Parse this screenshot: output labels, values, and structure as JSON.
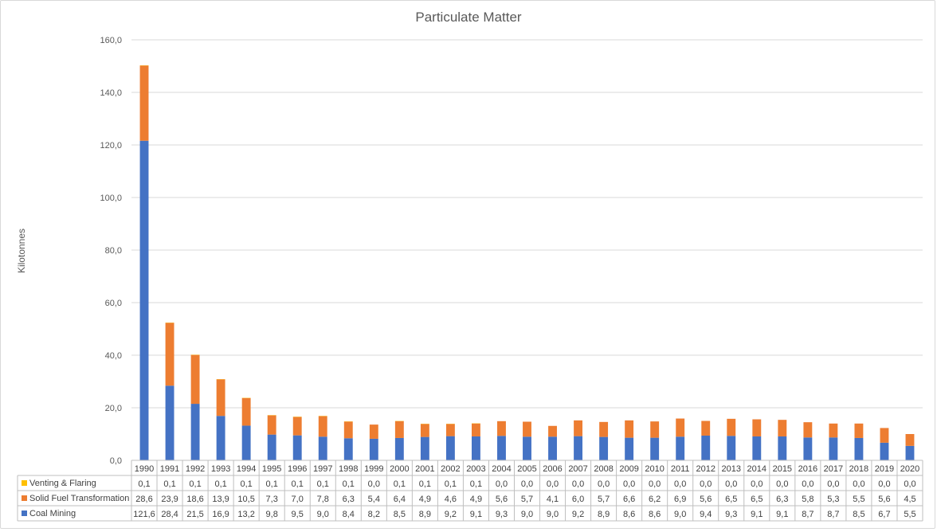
{
  "chart_data": {
    "type": "bar",
    "stacked": true,
    "title": "Particulate Matter",
    "ylabel": "Kilotonnes",
    "xlabel": "",
    "ylim": [
      0,
      160
    ],
    "yticks": [
      "0,0",
      "20,0",
      "40,0",
      "60,0",
      "80,0",
      "100,0",
      "120,0",
      "140,0",
      "160,0"
    ],
    "grid": true,
    "legend": "data-table-left",
    "categories": [
      "1990",
      "1991",
      "1992",
      "1993",
      "1994",
      "1995",
      "1996",
      "1997",
      "1998",
      "1999",
      "2000",
      "2001",
      "2002",
      "2003",
      "2004",
      "2005",
      "2006",
      "2007",
      "2008",
      "2009",
      "2010",
      "2011",
      "2012",
      "2013",
      "2014",
      "2015",
      "2016",
      "2017",
      "2018",
      "2019",
      "2020"
    ],
    "series": [
      {
        "name": "Venting & Flaring",
        "color": "#ffc000",
        "values": [
          0.1,
          0.1,
          0.1,
          0.1,
          0.1,
          0.1,
          0.1,
          0.1,
          0.1,
          0.0,
          0.1,
          0.1,
          0.1,
          0.1,
          0.0,
          0.0,
          0.0,
          0.0,
          0.0,
          0.0,
          0.0,
          0.0,
          0.0,
          0.0,
          0.0,
          0.0,
          0.0,
          0.0,
          0.0,
          0.0,
          0.0
        ],
        "labels": [
          "0,1",
          "0,1",
          "0,1",
          "0,1",
          "0,1",
          "0,1",
          "0,1",
          "0,1",
          "0,1",
          "0,0",
          "0,1",
          "0,1",
          "0,1",
          "0,1",
          "0,0",
          "0,0",
          "0,0",
          "0,0",
          "0,0",
          "0,0",
          "0,0",
          "0,0",
          "0,0",
          "0,0",
          "0,0",
          "0,0",
          "0,0",
          "0,0",
          "0,0",
          "0,0",
          "0,0"
        ]
      },
      {
        "name": "Solid Fuel Transformation",
        "color": "#ed7d31",
        "values": [
          28.6,
          23.9,
          18.6,
          13.9,
          10.5,
          7.3,
          7.0,
          7.8,
          6.3,
          5.4,
          6.4,
          4.9,
          4.6,
          4.9,
          5.6,
          5.7,
          4.1,
          6.0,
          5.7,
          6.6,
          6.2,
          6.9,
          5.6,
          6.5,
          6.5,
          6.3,
          5.8,
          5.3,
          5.5,
          5.6,
          4.5
        ],
        "labels": [
          "28,6",
          "23,9",
          "18,6",
          "13,9",
          "10,5",
          "7,3",
          "7,0",
          "7,8",
          "6,3",
          "5,4",
          "6,4",
          "4,9",
          "4,6",
          "4,9",
          "5,6",
          "5,7",
          "4,1",
          "6,0",
          "5,7",
          "6,6",
          "6,2",
          "6,9",
          "5,6",
          "6,5",
          "6,5",
          "6,3",
          "5,8",
          "5,3",
          "5,5",
          "5,6",
          "4,5"
        ]
      },
      {
        "name": "Coal Mining",
        "color": "#4472c4",
        "values": [
          121.6,
          28.4,
          21.5,
          16.9,
          13.2,
          9.8,
          9.5,
          9.0,
          8.4,
          8.2,
          8.5,
          8.9,
          9.2,
          9.1,
          9.3,
          9.0,
          9.0,
          9.2,
          8.9,
          8.6,
          8.6,
          9.0,
          9.4,
          9.3,
          9.1,
          9.1,
          8.7,
          8.7,
          8.5,
          6.7,
          5.5
        ],
        "labels": [
          "121,6",
          "28,4",
          "21,5",
          "16,9",
          "13,2",
          "9,8",
          "9,5",
          "9,0",
          "8,4",
          "8,2",
          "8,5",
          "8,9",
          "9,2",
          "9,1",
          "9,3",
          "9,0",
          "9,0",
          "9,2",
          "8,9",
          "8,6",
          "8,6",
          "9,0",
          "9,4",
          "9,3",
          "9,1",
          "9,1",
          "8,7",
          "8,7",
          "8,5",
          "6,7",
          "5,5"
        ]
      }
    ]
  }
}
